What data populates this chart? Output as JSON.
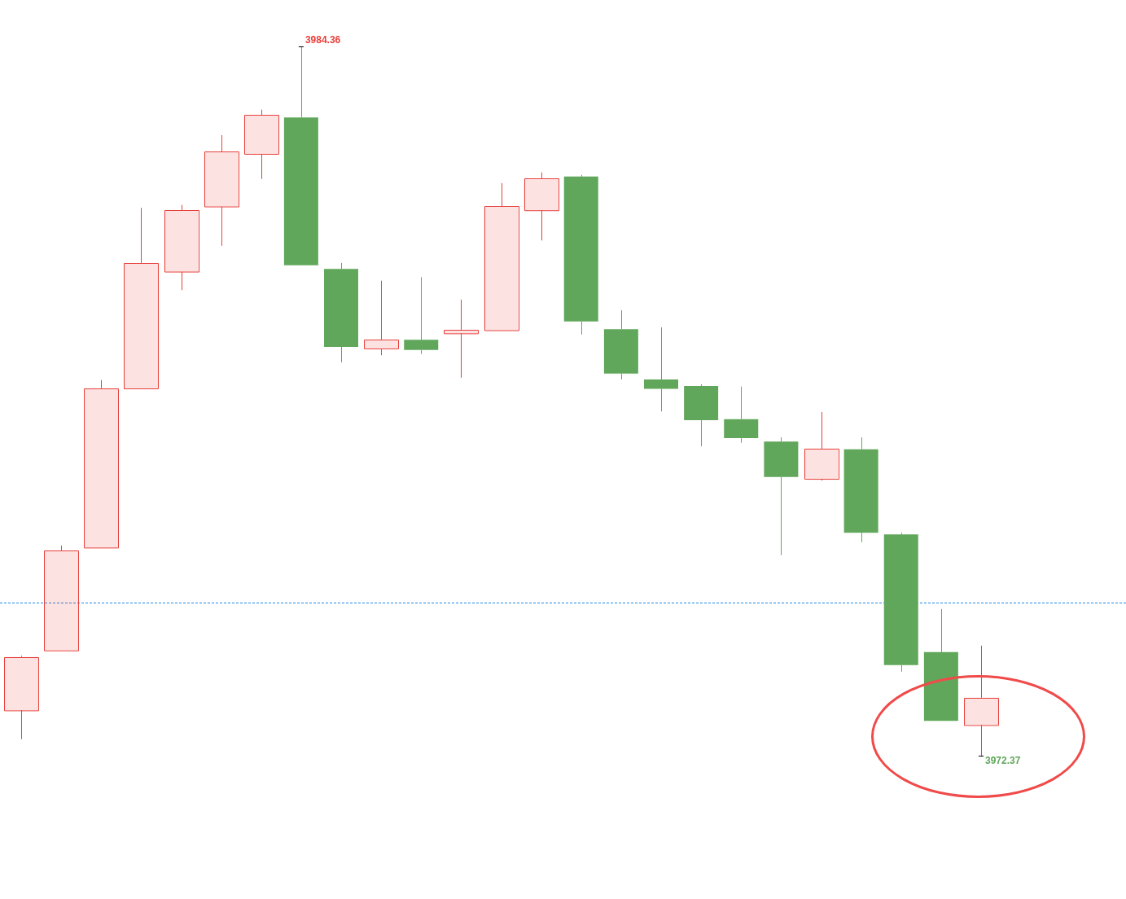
{
  "chart_data": {
    "type": "candlestick",
    "categories": [
      null,
      null,
      null,
      null,
      null,
      null,
      null,
      null,
      null,
      null,
      null,
      null,
      null,
      null,
      null,
      null,
      null,
      null,
      null,
      null,
      null,
      null,
      null,
      null,
      null
    ],
    "ohlc": [
      [
        3973.14,
        3974.06,
        3972.65,
        3974.04
      ],
      [
        3974.15,
        3975.92,
        3974.15,
        3975.84
      ],
      [
        3975.89,
        3978.72,
        3975.89,
        3978.58
      ],
      [
        3978.58,
        3981.63,
        3978.58,
        3980.7
      ],
      [
        3980.55,
        3981.68,
        3980.24,
        3981.59
      ],
      [
        3981.65,
        3982.86,
        3980.99,
        3982.58
      ],
      [
        3982.54,
        3983.29,
        3982.12,
        3983.2
      ],
      [
        3983.16,
        3984.36,
        3980.66,
        3980.66
      ],
      [
        3980.6,
        3980.7,
        3979.02,
        3979.28
      ],
      [
        3979.25,
        3980.4,
        3979.14,
        3979.4
      ],
      [
        3979.4,
        3980.46,
        3979.16,
        3979.23
      ],
      [
        3979.51,
        3980.08,
        3978.76,
        3979.57
      ],
      [
        3979.56,
        3982.05,
        3979.56,
        3981.66
      ],
      [
        3981.59,
        3982.23,
        3981.08,
        3982.13
      ],
      [
        3982.16,
        3982.19,
        3979.49,
        3979.71
      ],
      [
        3979.58,
        3979.9,
        3978.73,
        3978.83
      ],
      [
        3978.73,
        3979.61,
        3978.19,
        3978.57
      ],
      [
        3978.62,
        3978.65,
        3977.6,
        3978.04
      ],
      [
        3978.06,
        3978.61,
        3977.66,
        3977.74
      ],
      [
        3977.68,
        3977.75,
        3975.76,
        3977.08
      ],
      [
        3977.05,
        3978.18,
        3977.02,
        3977.56
      ],
      [
        3977.55,
        3977.75,
        3975.98,
        3976.14
      ],
      [
        3976.11,
        3976.14,
        3973.79,
        3973.9
      ],
      [
        3974.12,
        3974.85,
        3972.96,
        3972.96
      ],
      [
        3972.89,
        3974.23,
        3972.37,
        3973.35
      ]
    ],
    "colors": [
      "#e8403c",
      "#e8403c",
      "#e8403c",
      "#e8403c",
      "#e8403c",
      "#e8403c",
      "#e8403c",
      "#60a75b",
      "#60a75b",
      "#e8403c",
      "#60a75b",
      "#e8403c",
      "#e8403c",
      "#e8403c",
      "#60a75b",
      "#60a75b",
      "#60a75b",
      "#60a75b",
      "#60a75b",
      "#60a75b",
      "#e8403c",
      "#60a75b",
      "#60a75b",
      "#60a75b",
      "#e8403c"
    ],
    "annotations": [
      "3984.36",
      "3972.37"
    ],
    "ref_lines": [
      {
        "axis": "y",
        "value": 3974.96,
        "color": "#1e88e5",
        "line_style": "dashed"
      }
    ]
  }
}
